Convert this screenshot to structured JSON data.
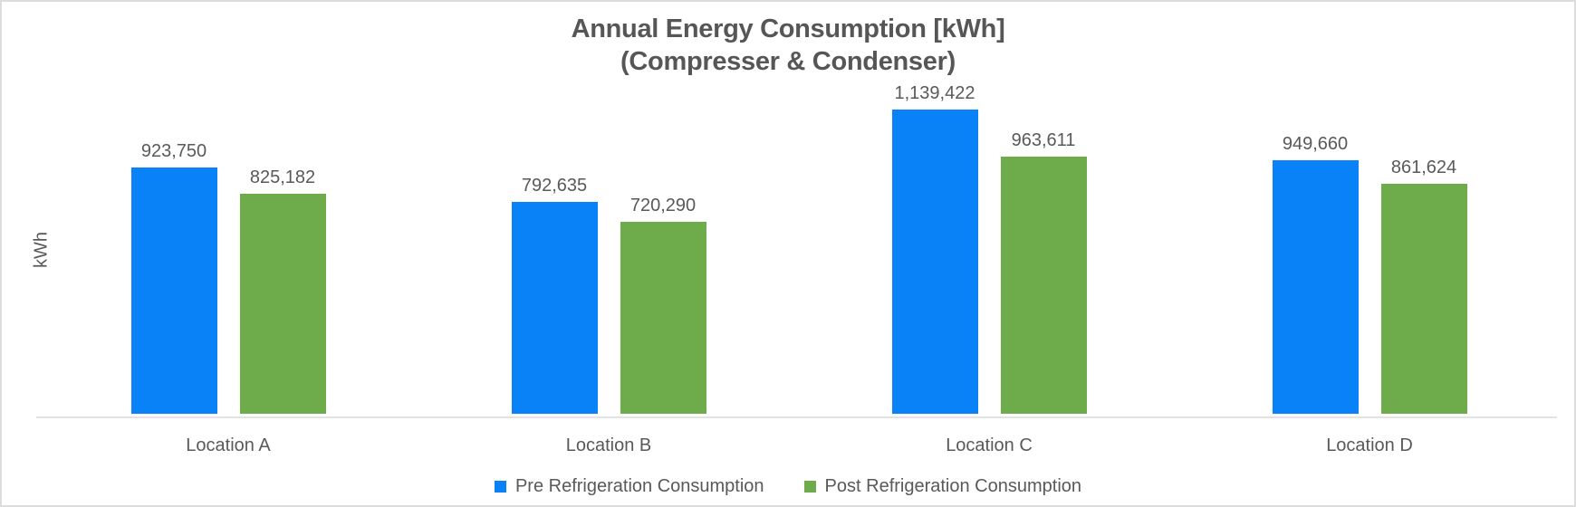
{
  "chart_data": {
    "type": "bar",
    "title": "Annual Energy Consumption [kWh]",
    "subtitle": "(Compresser & Condenser)",
    "ylabel": "kWh",
    "xlabel": "",
    "categories": [
      "Location A",
      "Location B",
      "Location C",
      "Location D"
    ],
    "series": [
      {
        "name": "Pre Refrigeration Consumption",
        "key": "pre-refrigeration",
        "color": "#0982f8",
        "values": [
          923750,
          792635,
          1139422,
          949660
        ],
        "labels": [
          "923,750",
          "792,635",
          "1,139,422",
          "949,660"
        ]
      },
      {
        "name": "Post Refrigeration Consumption",
        "key": "post-refrigeration",
        "color": "#6dab4b",
        "values": [
          825182,
          720290,
          963611,
          861624
        ],
        "labels": [
          "825,182",
          "720,290",
          "963,611",
          "861,624"
        ]
      }
    ],
    "ylim": [
      0,
      1260000
    ],
    "grid": false,
    "y_axis_ticks_visible": false,
    "legend_position": "bottom",
    "text_color": "#595959",
    "axis_line_color": "#e3e3e3"
  }
}
